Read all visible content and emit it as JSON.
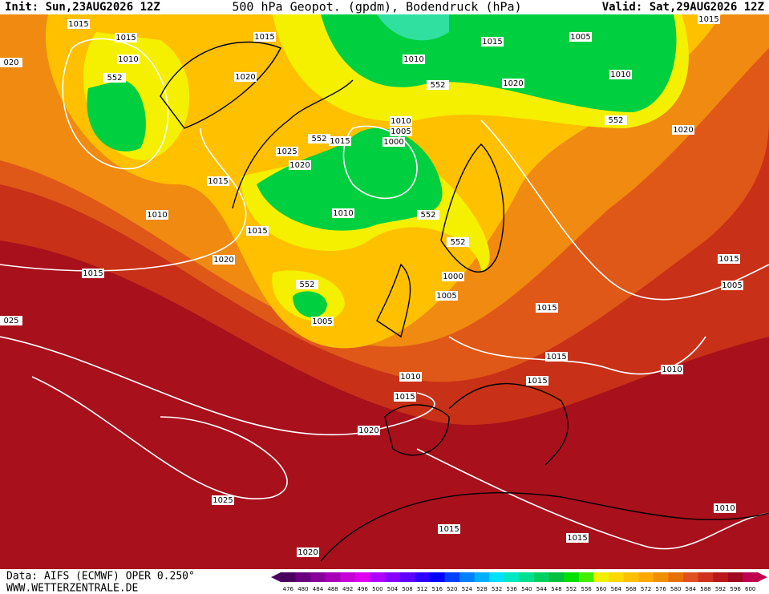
{
  "header": {
    "init": "Init: Sun,23AUG2026 12Z",
    "title": "500 hPa Geopot. (gpdm), Bodendruck (hPa)",
    "valid": "Valid: Sat,29AUG2026 12Z"
  },
  "contour_labels": [
    "1015",
    "1015",
    "1015",
    "1010",
    "552",
    "1020",
    "1010",
    "1015",
    "1005",
    "1010",
    "1015",
    "1020",
    "552",
    "552",
    "1020",
    "1010",
    "1005",
    "1000",
    "552",
    "1015",
    "1025",
    "1020",
    "1015",
    "1010",
    "1010",
    "552",
    "552",
    "1015",
    "1020",
    "1015",
    "1000",
    "552",
    "1005",
    "1005",
    "1015",
    "1015",
    "1005",
    "1015",
    "1015",
    "1010",
    "1010",
    "1015",
    "1020",
    "1025",
    "1015",
    "1015",
    "1010",
    "1020",
    "020",
    "025"
  ],
  "footer": {
    "data": "Data: AIFS (ECMWF) OPER 0.250°",
    "site": "WWW.WETTERZENTRALE.DE"
  },
  "legend": {
    "labels": [
      476,
      480,
      484,
      488,
      492,
      496,
      500,
      504,
      508,
      512,
      516,
      520,
      524,
      528,
      532,
      536,
      540,
      544,
      548,
      552,
      556,
      560,
      564,
      568,
      572,
      576,
      580,
      584,
      588,
      592,
      596,
      600
    ],
    "colors": [
      "#4b0060",
      "#6a0080",
      "#8a009a",
      "#a800b8",
      "#c800d8",
      "#e000f0",
      "#b000ff",
      "#8800ff",
      "#6000ff",
      "#3000ff",
      "#0000ff",
      "#0040ff",
      "#0080ff",
      "#00b0ff",
      "#00e0ff",
      "#00e8c0",
      "#00e090",
      "#00d060",
      "#00c040",
      "#00e000",
      "#40f000",
      "#f0f000",
      "#ffd800",
      "#ffc000",
      "#ffa800",
      "#f09000",
      "#e87000",
      "#e05020",
      "#d03020",
      "#b81818",
      "#a00820",
      "#c00050"
    ]
  }
}
